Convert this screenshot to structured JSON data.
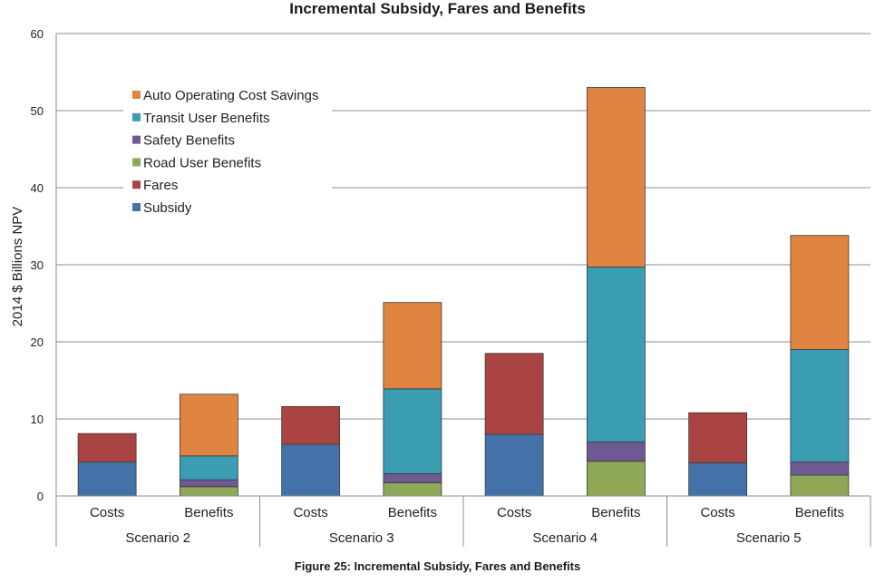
{
  "title": "Incremental Subsidy, Fares and Benefits",
  "caption": "Figure 25: Incremental Subsidy, Fares and Benefits",
  "chart_data": {
    "type": "bar",
    "stacked": true,
    "title": "Incremental Subsidy, Fares and Benefits",
    "ylabel": "2014 $ Billions NPV",
    "xlabel": "",
    "ylim": [
      0,
      60
    ],
    "yticks": [
      0,
      10,
      20,
      30,
      40,
      50,
      60
    ],
    "grid": true,
    "legend_position": "top-left",
    "groups": [
      "Scenario 2",
      "Scenario 3",
      "Scenario 4",
      "Scenario 5"
    ],
    "categories": [
      "Costs",
      "Benefits",
      "Costs",
      "Benefits",
      "Costs",
      "Benefits",
      "Costs",
      "Benefits"
    ],
    "series": [
      {
        "name": "Subsidy",
        "color": "#4472a8",
        "values": [
          4.4,
          0,
          6.7,
          0,
          8.0,
          0,
          4.3,
          0
        ]
      },
      {
        "name": "Fares",
        "color": "#a94442",
        "values": [
          3.7,
          0,
          4.9,
          0,
          10.5,
          0,
          6.5,
          0
        ]
      },
      {
        "name": "Road User Benefits",
        "color": "#8fa858",
        "values": [
          0,
          1.2,
          0,
          1.7,
          0,
          4.5,
          0,
          2.7
        ]
      },
      {
        "name": "Safety Benefits",
        "color": "#6e5a93",
        "values": [
          0,
          0.9,
          0,
          1.2,
          0,
          2.5,
          0,
          1.7
        ]
      },
      {
        "name": "Transit User Benefits",
        "color": "#3b9db2",
        "values": [
          0,
          3.1,
          0,
          11.0,
          0,
          22.7,
          0,
          14.6
        ]
      },
      {
        "name": "Auto Operating Cost Savings",
        "color": "#e08541",
        "values": [
          0,
          8.0,
          0,
          11.2,
          0,
          23.3,
          0,
          14.8
        ]
      }
    ],
    "legend_order": [
      "Auto Operating Cost Savings",
      "Transit User Benefits",
      "Safety Benefits",
      "Road User Benefits",
      "Fares",
      "Subsidy"
    ]
  }
}
